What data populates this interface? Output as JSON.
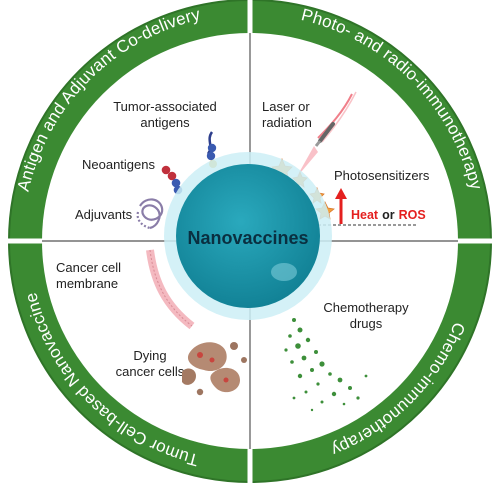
{
  "ring": {
    "top_left": "Antigen and Adjuvant Co-delivery",
    "top_right": "Photo- and radio-immunotherapy",
    "bottom_right": "Chemo-immunotherapy",
    "bottom_left": "Tumor Cell-based Nanovaccine"
  },
  "center": {
    "title": "Nanovaccines"
  },
  "quadrants": {
    "top_left": {
      "tumor_antigens_line1": "Tumor-associated",
      "tumor_antigens_line2": "antigens",
      "neoantigens": "Neoantigens",
      "adjuvants": "Adjuvants"
    },
    "top_right": {
      "laser_line1": "Laser or",
      "laser_line2": "radiation",
      "photosensitizers": "Photosensitizers",
      "heat": "Heat",
      "or": "or",
      "ros": "ROS"
    },
    "bottom_left": {
      "membrane_line1": "Cancer cell",
      "membrane_line2": "membrane",
      "dying_line1": "Dying",
      "dying_line2": "cancer cells"
    },
    "bottom_right": {
      "chemo_line1": "Chemotherapy",
      "chemo_line2": "drugs"
    }
  },
  "colors": {
    "ring_green": "#3b8a32",
    "center_teal": "#1791a6",
    "halo": "#bfe9f3",
    "heat_red": "#e4201f"
  }
}
